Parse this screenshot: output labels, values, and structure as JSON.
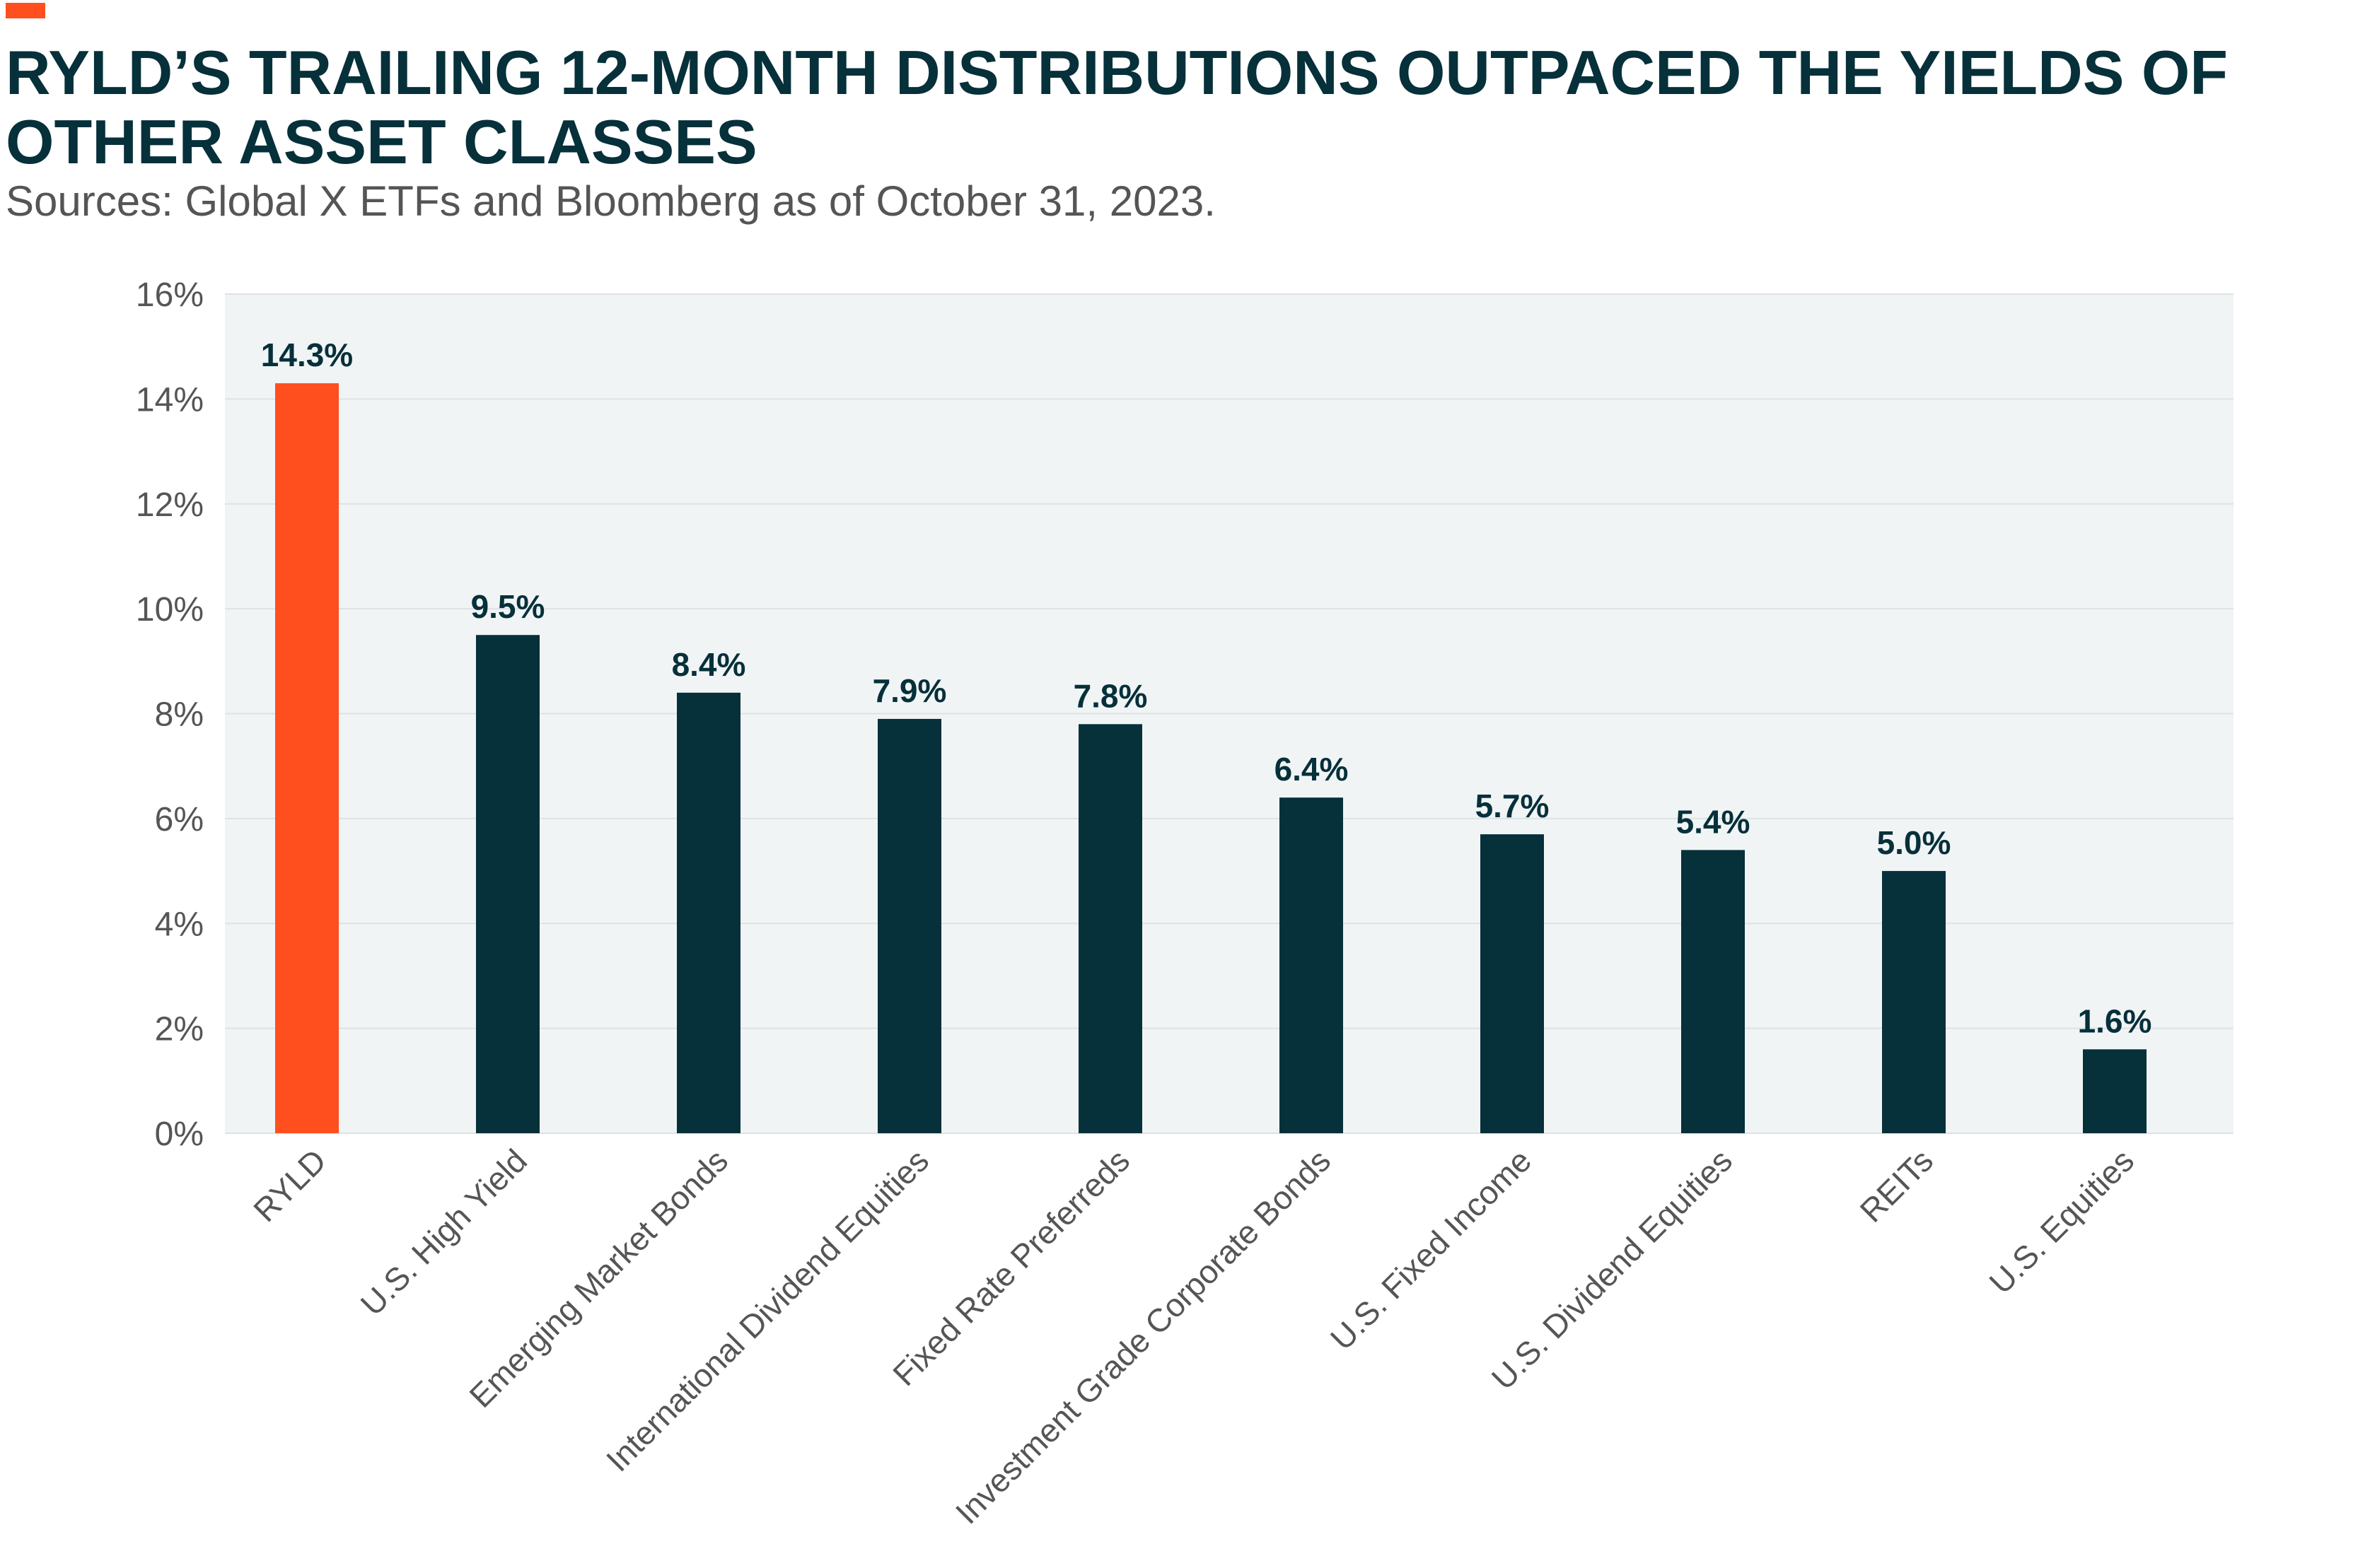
{
  "header": {
    "title": "RYLD’S TRAILING 12-MONTH DISTRIBUTIONS OUTPACED THE YIELDS OF OTHER ASSET CLASSES",
    "subtitle": "Sources: Global X ETFs and Bloomberg as of October 31, 2023."
  },
  "colors": {
    "accent": "#ff4f1f",
    "bar": "#06303a",
    "highlight": "#ff4f1f",
    "plot_bg": "#f1f4f5",
    "grid": "#dde2e4",
    "text_dark": "#06303a",
    "text_muted": "#555555"
  },
  "chart_data": {
    "type": "bar",
    "title": "RYLD’S TRAILING 12-MONTH DISTRIBUTIONS OUTPACED THE YIELDS OF OTHER ASSET CLASSES",
    "xlabel": "",
    "ylabel": "",
    "categories": [
      "RYLD",
      "U.S. High Yield",
      "Emerging Market Bonds",
      "International Dividend Equities",
      "Fixed Rate Preferreds",
      "Investment Grade Corporate Bonds",
      "U.S. Fixed Income",
      "U.S. Dividend Equities",
      "REITs",
      "U.S. Equities"
    ],
    "values": [
      14.3,
      9.5,
      8.4,
      7.9,
      7.8,
      6.4,
      5.7,
      5.4,
      5.0,
      1.6
    ],
    "value_labels": [
      "14.3%",
      "9.5%",
      "8.4%",
      "7.9%",
      "7.8%",
      "6.4%",
      "5.7%",
      "5.4%",
      "5.0%",
      "1.6%"
    ],
    "highlight_index": 0,
    "ylim": [
      0,
      16
    ],
    "yticks": [
      0,
      2,
      4,
      6,
      8,
      10,
      12,
      14,
      16
    ],
    "ytick_labels": [
      "0%",
      "2%",
      "4%",
      "6%",
      "8%",
      "10%",
      "12%",
      "14%",
      "16%"
    ],
    "grid": true,
    "legend": "none"
  }
}
